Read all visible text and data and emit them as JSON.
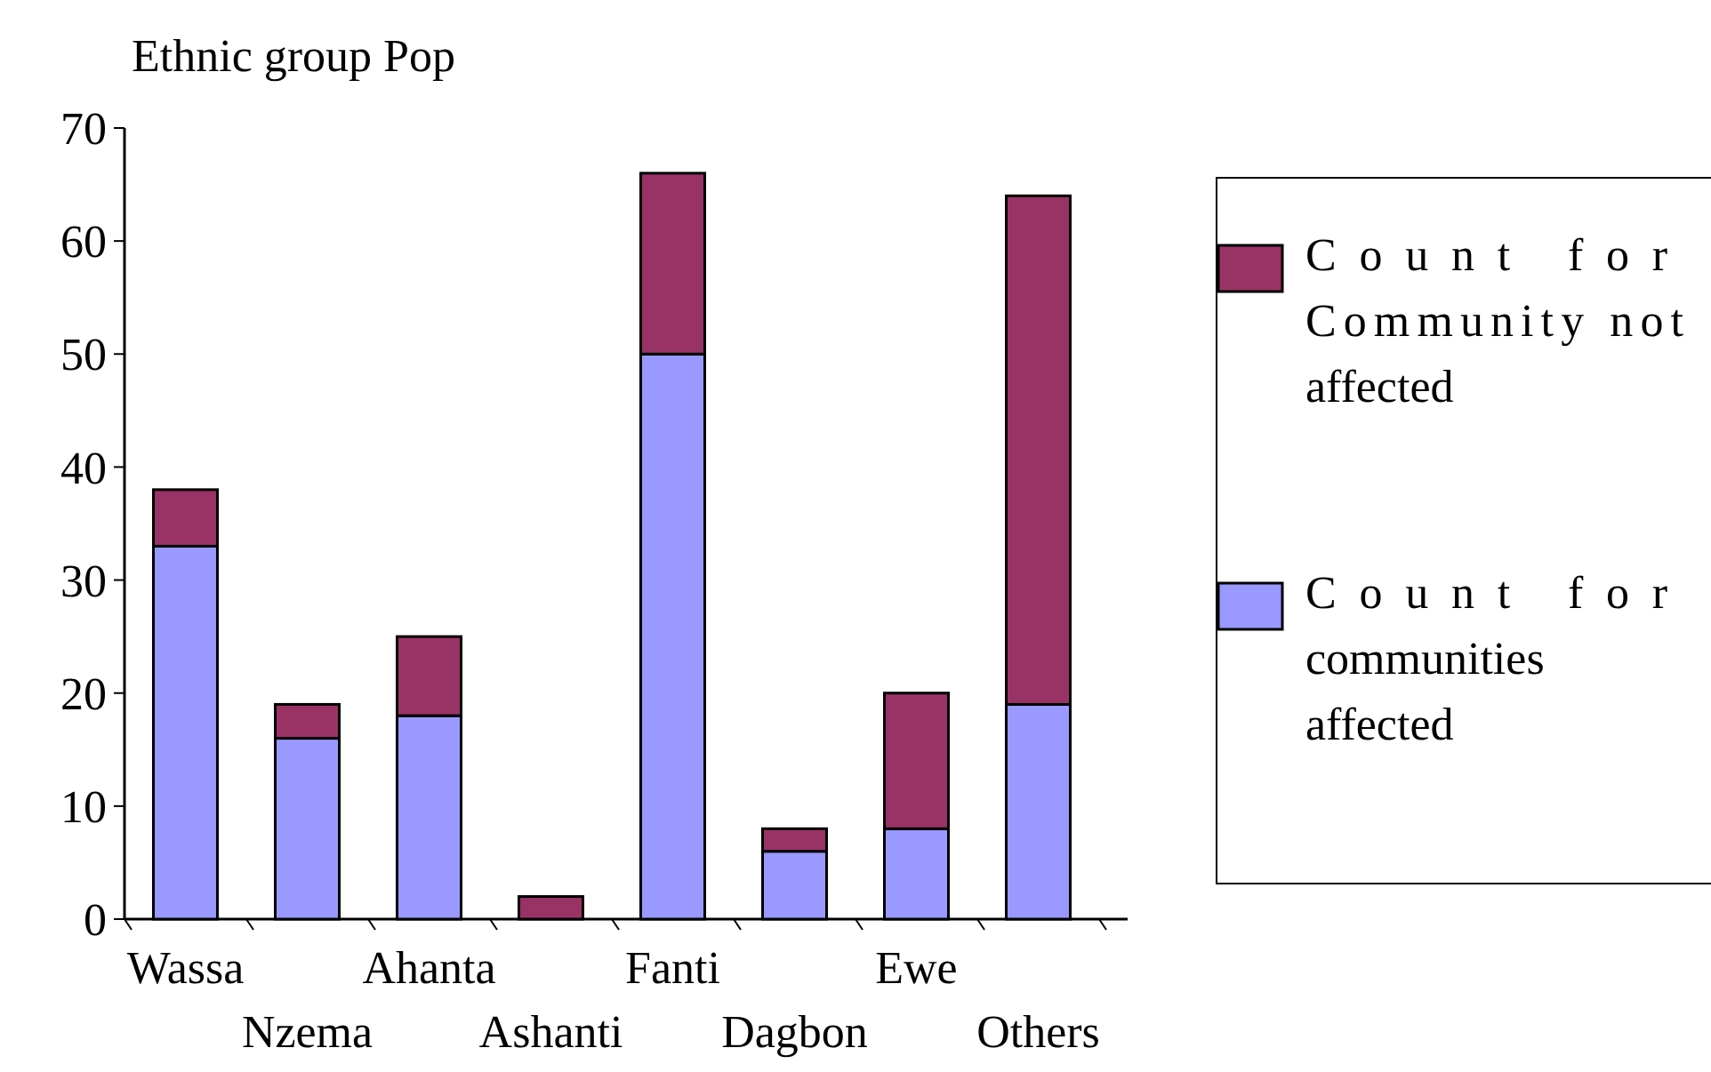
{
  "chart_data": {
    "type": "bar",
    "title": "Ethnic group Pop",
    "categories": [
      "Wassa",
      "Nzema",
      "Ahanta",
      "Ashanti",
      "Fanti",
      "Dagbon",
      "Ewe",
      "Others"
    ],
    "stacked": true,
    "legend": "right",
    "ylim": [
      0,
      70
    ],
    "yticks": [
      0,
      10,
      20,
      30,
      40,
      50,
      60,
      70
    ],
    "series": [
      {
        "name": "Count for communities affected",
        "color": "#9999ff",
        "values": [
          33,
          16,
          18,
          0,
          50,
          6,
          8,
          19
        ]
      },
      {
        "name": "Count for Community not affected",
        "color": "#993366",
        "values": [
          5,
          3,
          7,
          2,
          16,
          2,
          12,
          45
        ]
      }
    ]
  }
}
